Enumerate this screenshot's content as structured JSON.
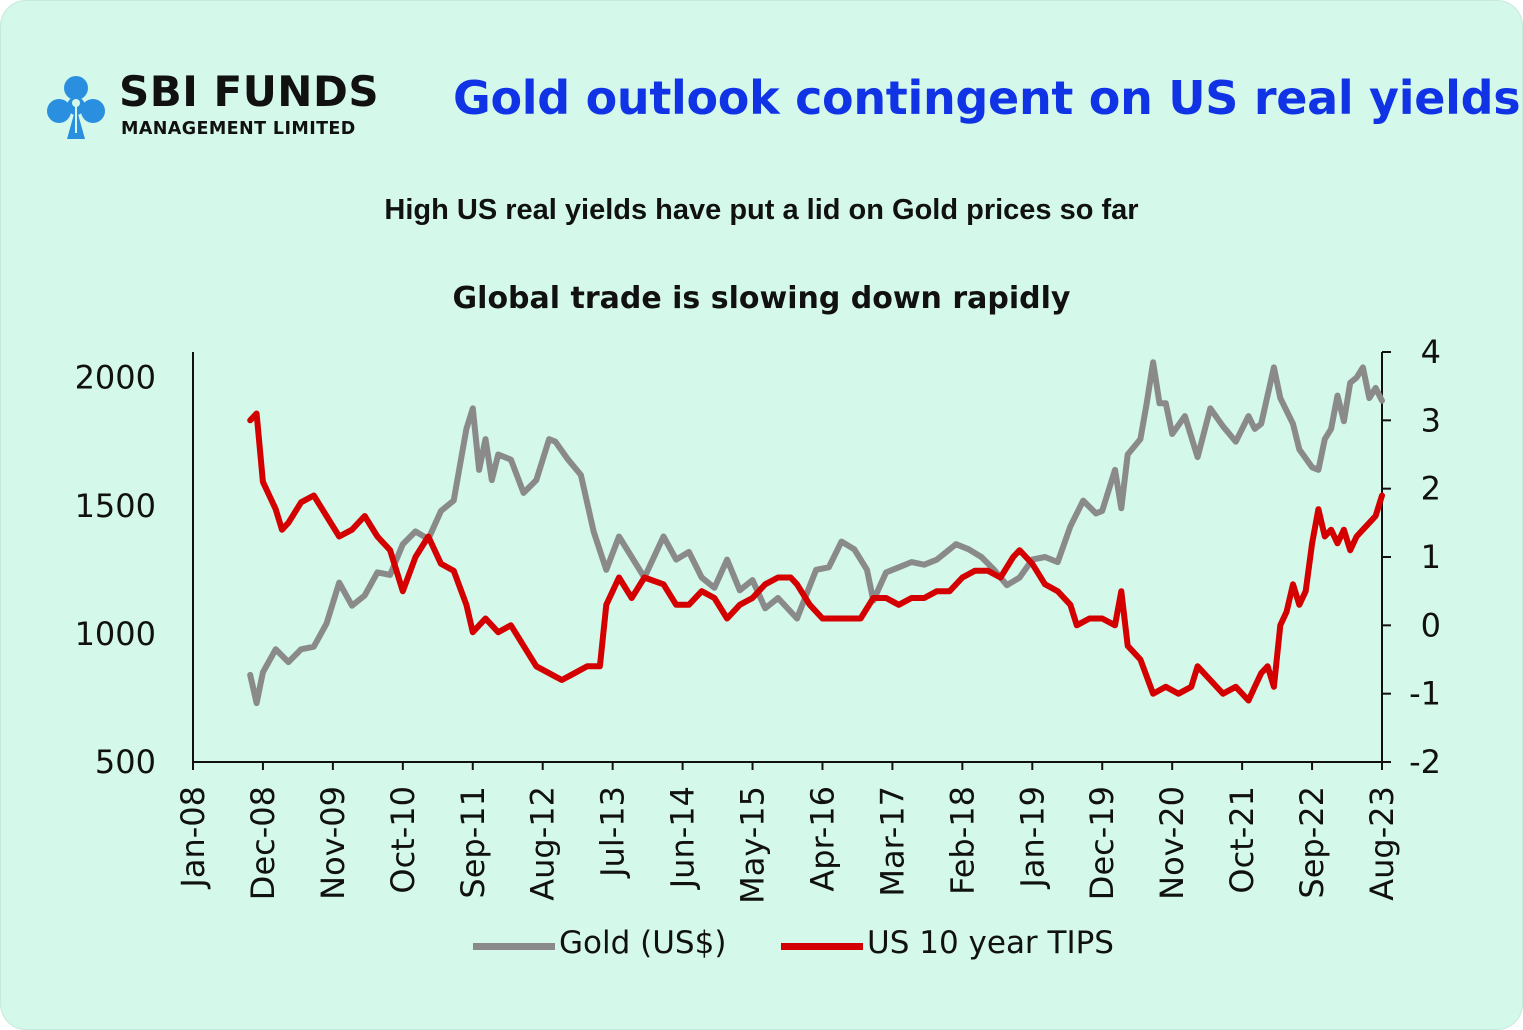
{
  "logo": {
    "name": "SBI FUNDS",
    "subtitle": "MANAGEMENT LIMITED",
    "brand_color": "#2b8fe0",
    "icon": "sbi-logo-icon"
  },
  "headline": "Gold outlook contingent on US real yields",
  "colors": {
    "background": "#d4f8ea",
    "headline": "#1133e6",
    "gold_series": "#8a8a8a",
    "tips_series": "#d40000"
  },
  "chart_data": {
    "type": "line",
    "title": "High US real yields have put a lid on Gold prices so far",
    "subtitle": "Global trade is slowing down rapidly",
    "x_tick_labels": [
      "Jan-08",
      "Dec-08",
      "Nov-09",
      "Oct-10",
      "Sep-11",
      "Aug-12",
      "Jul-13",
      "Jun-14",
      "May-15",
      "Apr-16",
      "Mar-17",
      "Feb-18",
      "Jan-19",
      "Dec-19",
      "Nov-20",
      "Oct-21",
      "Sep-22",
      "Aug-23"
    ],
    "x_range": [
      "2008-01",
      "2023-08"
    ],
    "y_left": {
      "ticks": [
        500,
        1000,
        1500,
        2000
      ],
      "range": [
        500,
        2100
      ]
    },
    "y_right": {
      "ticks": [
        -2,
        -1,
        0,
        1,
        2,
        3,
        4
      ],
      "range": [
        -2,
        4
      ]
    },
    "grid": false,
    "legend_position": "bottom",
    "series": [
      {
        "name": "Gold (US$)",
        "axis": "left",
        "color": "#8a8a8a",
        "points": [
          [
            "2008-10",
            840
          ],
          [
            "2008-11",
            730
          ],
          [
            "2008-12",
            850
          ],
          [
            "2009-02",
            940
          ],
          [
            "2009-04",
            890
          ],
          [
            "2009-06",
            940
          ],
          [
            "2009-08",
            950
          ],
          [
            "2009-10",
            1040
          ],
          [
            "2009-12",
            1200
          ],
          [
            "2010-02",
            1110
          ],
          [
            "2010-04",
            1150
          ],
          [
            "2010-06",
            1240
          ],
          [
            "2010-08",
            1230
          ],
          [
            "2010-10",
            1350
          ],
          [
            "2010-12",
            1400
          ],
          [
            "2011-02",
            1370
          ],
          [
            "2011-04",
            1480
          ],
          [
            "2011-06",
            1520
          ],
          [
            "2011-08",
            1800
          ],
          [
            "2011-09",
            1880
          ],
          [
            "2011-10",
            1640
          ],
          [
            "2011-11",
            1760
          ],
          [
            "2011-12",
            1600
          ],
          [
            "2012-01",
            1700
          ],
          [
            "2012-03",
            1680
          ],
          [
            "2012-05",
            1550
          ],
          [
            "2012-07",
            1600
          ],
          [
            "2012-09",
            1760
          ],
          [
            "2012-10",
            1750
          ],
          [
            "2012-12",
            1680
          ],
          [
            "2013-02",
            1620
          ],
          [
            "2013-04",
            1400
          ],
          [
            "2013-06",
            1250
          ],
          [
            "2013-08",
            1380
          ],
          [
            "2013-10",
            1300
          ],
          [
            "2013-12",
            1220
          ],
          [
            "2014-03",
            1380
          ],
          [
            "2014-05",
            1290
          ],
          [
            "2014-07",
            1320
          ],
          [
            "2014-09",
            1220
          ],
          [
            "2014-11",
            1180
          ],
          [
            "2015-01",
            1290
          ],
          [
            "2015-03",
            1170
          ],
          [
            "2015-05",
            1210
          ],
          [
            "2015-07",
            1100
          ],
          [
            "2015-09",
            1140
          ],
          [
            "2015-12",
            1060
          ],
          [
            "2016-03",
            1250
          ],
          [
            "2016-05",
            1260
          ],
          [
            "2016-07",
            1360
          ],
          [
            "2016-09",
            1330
          ],
          [
            "2016-11",
            1250
          ],
          [
            "2016-12",
            1130
          ],
          [
            "2017-02",
            1240
          ],
          [
            "2017-04",
            1260
          ],
          [
            "2017-06",
            1280
          ],
          [
            "2017-08",
            1270
          ],
          [
            "2017-10",
            1290
          ],
          [
            "2018-01",
            1350
          ],
          [
            "2018-03",
            1330
          ],
          [
            "2018-05",
            1300
          ],
          [
            "2018-07",
            1250
          ],
          [
            "2018-09",
            1190
          ],
          [
            "2018-11",
            1220
          ],
          [
            "2019-01",
            1290
          ],
          [
            "2019-03",
            1300
          ],
          [
            "2019-05",
            1280
          ],
          [
            "2019-07",
            1420
          ],
          [
            "2019-09",
            1520
          ],
          [
            "2019-11",
            1470
          ],
          [
            "2019-12",
            1480
          ],
          [
            "2020-01",
            1560
          ],
          [
            "2020-02",
            1640
          ],
          [
            "2020-03",
            1490
          ],
          [
            "2020-04",
            1700
          ],
          [
            "2020-06",
            1760
          ],
          [
            "2020-07",
            1900
          ],
          [
            "2020-08",
            2060
          ],
          [
            "2020-09",
            1900
          ],
          [
            "2020-10",
            1900
          ],
          [
            "2020-11",
            1780
          ],
          [
            "2021-01",
            1850
          ],
          [
            "2021-03",
            1690
          ],
          [
            "2021-05",
            1880
          ],
          [
            "2021-07",
            1810
          ],
          [
            "2021-09",
            1750
          ],
          [
            "2021-11",
            1850
          ],
          [
            "2021-12",
            1800
          ],
          [
            "2022-01",
            1820
          ],
          [
            "2022-03",
            2040
          ],
          [
            "2022-04",
            1920
          ],
          [
            "2022-06",
            1820
          ],
          [
            "2022-07",
            1720
          ],
          [
            "2022-09",
            1650
          ],
          [
            "2022-10",
            1640
          ],
          [
            "2022-11",
            1760
          ],
          [
            "2022-12",
            1800
          ],
          [
            "2023-01",
            1930
          ],
          [
            "2023-02",
            1830
          ],
          [
            "2023-03",
            1980
          ],
          [
            "2023-04",
            2000
          ],
          [
            "2023-05",
            2040
          ],
          [
            "2023-06",
            1920
          ],
          [
            "2023-07",
            1960
          ],
          [
            "2023-08",
            1910
          ]
        ]
      },
      {
        "name": "US 10 year TIPS",
        "axis": "right",
        "color": "#d40000",
        "points": [
          [
            "2008-10",
            3.0
          ],
          [
            "2008-11",
            3.1
          ],
          [
            "2008-12",
            2.1
          ],
          [
            "2009-01",
            1.9
          ],
          [
            "2009-02",
            1.7
          ],
          [
            "2009-03",
            1.4
          ],
          [
            "2009-04",
            1.5
          ],
          [
            "2009-06",
            1.8
          ],
          [
            "2009-08",
            1.9
          ],
          [
            "2009-10",
            1.6
          ],
          [
            "2009-12",
            1.3
          ],
          [
            "2010-02",
            1.4
          ],
          [
            "2010-04",
            1.6
          ],
          [
            "2010-06",
            1.3
          ],
          [
            "2010-08",
            1.1
          ],
          [
            "2010-10",
            0.5
          ],
          [
            "2010-12",
            1.0
          ],
          [
            "2011-02",
            1.3
          ],
          [
            "2011-04",
            0.9
          ],
          [
            "2011-06",
            0.8
          ],
          [
            "2011-08",
            0.3
          ],
          [
            "2011-09",
            -0.1
          ],
          [
            "2011-11",
            0.1
          ],
          [
            "2012-01",
            -0.1
          ],
          [
            "2012-03",
            0.0
          ],
          [
            "2012-05",
            -0.3
          ],
          [
            "2012-07",
            -0.6
          ],
          [
            "2012-09",
            -0.7
          ],
          [
            "2012-11",
            -0.8
          ],
          [
            "2013-01",
            -0.7
          ],
          [
            "2013-03",
            -0.6
          ],
          [
            "2013-05",
            -0.6
          ],
          [
            "2013-06",
            0.3
          ],
          [
            "2013-07",
            0.5
          ],
          [
            "2013-08",
            0.7
          ],
          [
            "2013-10",
            0.4
          ],
          [
            "2013-12",
            0.7
          ],
          [
            "2014-03",
            0.6
          ],
          [
            "2014-05",
            0.3
          ],
          [
            "2014-07",
            0.3
          ],
          [
            "2014-09",
            0.5
          ],
          [
            "2014-11",
            0.4
          ],
          [
            "2015-01",
            0.1
          ],
          [
            "2015-03",
            0.3
          ],
          [
            "2015-05",
            0.4
          ],
          [
            "2015-07",
            0.6
          ],
          [
            "2015-09",
            0.7
          ],
          [
            "2015-11",
            0.7
          ],
          [
            "2015-12",
            0.6
          ],
          [
            "2016-02",
            0.3
          ],
          [
            "2016-04",
            0.1
          ],
          [
            "2016-06",
            0.1
          ],
          [
            "2016-08",
            0.1
          ],
          [
            "2016-10",
            0.1
          ],
          [
            "2016-12",
            0.4
          ],
          [
            "2017-02",
            0.4
          ],
          [
            "2017-04",
            0.3
          ],
          [
            "2017-06",
            0.4
          ],
          [
            "2017-08",
            0.4
          ],
          [
            "2017-10",
            0.5
          ],
          [
            "2017-12",
            0.5
          ],
          [
            "2018-02",
            0.7
          ],
          [
            "2018-04",
            0.8
          ],
          [
            "2018-06",
            0.8
          ],
          [
            "2018-08",
            0.7
          ],
          [
            "2018-10",
            1.0
          ],
          [
            "2018-11",
            1.1
          ],
          [
            "2019-01",
            0.9
          ],
          [
            "2019-03",
            0.6
          ],
          [
            "2019-05",
            0.5
          ],
          [
            "2019-07",
            0.3
          ],
          [
            "2019-08",
            0.0
          ],
          [
            "2019-10",
            0.1
          ],
          [
            "2019-12",
            0.1
          ],
          [
            "2020-02",
            0.0
          ],
          [
            "2020-03",
            0.5
          ],
          [
            "2020-04",
            -0.3
          ],
          [
            "2020-06",
            -0.5
          ],
          [
            "2020-08",
            -1.0
          ],
          [
            "2020-10",
            -0.9
          ],
          [
            "2020-12",
            -1.0
          ],
          [
            "2021-02",
            -0.9
          ],
          [
            "2021-03",
            -0.6
          ],
          [
            "2021-05",
            -0.8
          ],
          [
            "2021-07",
            -1.0
          ],
          [
            "2021-09",
            -0.9
          ],
          [
            "2021-11",
            -1.1
          ],
          [
            "2021-12",
            -0.9
          ],
          [
            "2022-01",
            -0.7
          ],
          [
            "2022-02",
            -0.6
          ],
          [
            "2022-03",
            -0.9
          ],
          [
            "2022-04",
            0.0
          ],
          [
            "2022-05",
            0.2
          ],
          [
            "2022-06",
            0.6
          ],
          [
            "2022-07",
            0.3
          ],
          [
            "2022-08",
            0.5
          ],
          [
            "2022-09",
            1.2
          ],
          [
            "2022-10",
            1.7
          ],
          [
            "2022-11",
            1.3
          ],
          [
            "2022-12",
            1.4
          ],
          [
            "2023-01",
            1.2
          ],
          [
            "2023-02",
            1.4
          ],
          [
            "2023-03",
            1.1
          ],
          [
            "2023-04",
            1.3
          ],
          [
            "2023-05",
            1.4
          ],
          [
            "2023-06",
            1.5
          ],
          [
            "2023-07",
            1.6
          ],
          [
            "2023-08",
            1.9
          ]
        ]
      }
    ]
  }
}
